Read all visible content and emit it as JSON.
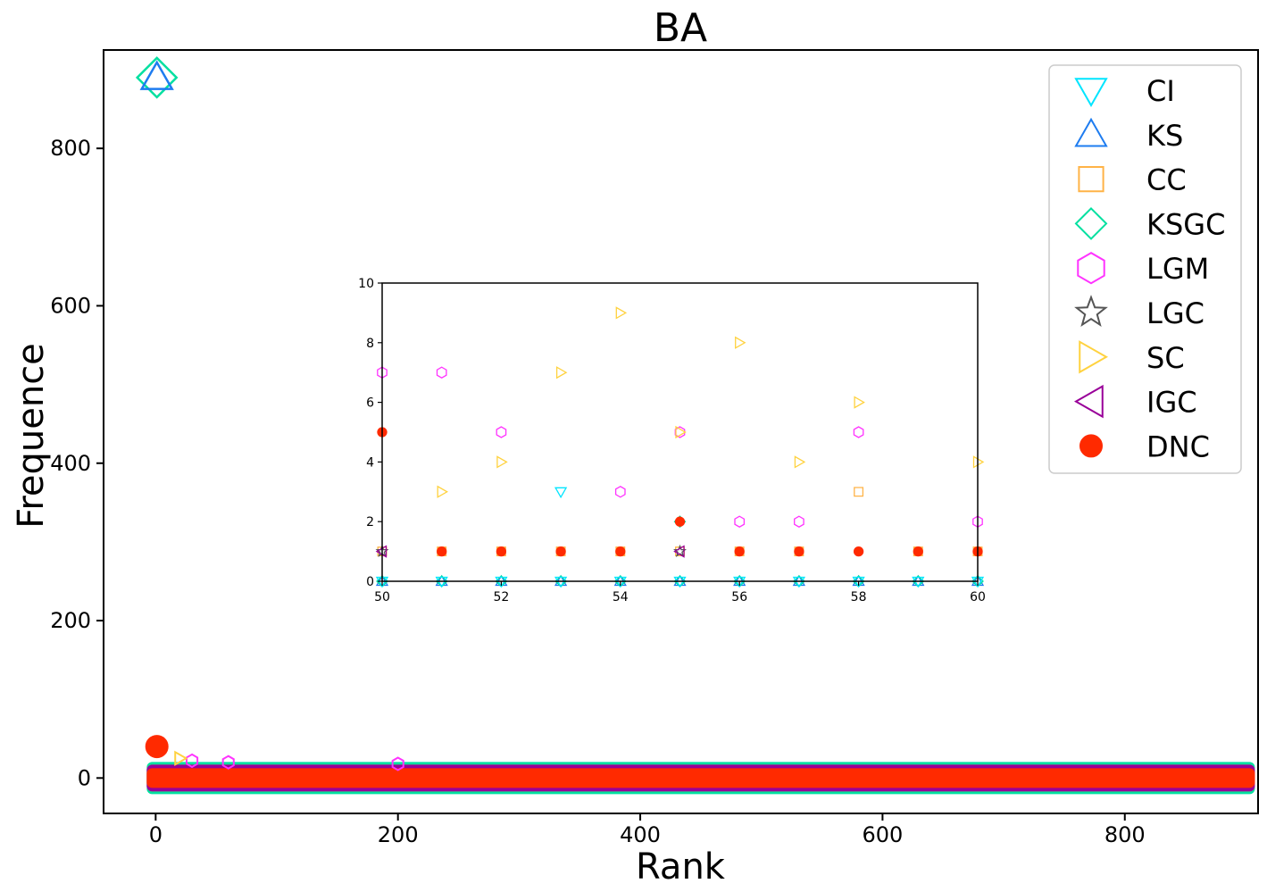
{
  "chart_data": {
    "type": "scatter",
    "title": "BA",
    "xlabel": "Rank",
    "ylabel": "Frequence",
    "xlim": [
      -43,
      910
    ],
    "ylim": [
      -45,
      925
    ],
    "xticks": [
      0,
      200,
      400,
      600,
      800
    ],
    "yticks": [
      0,
      200,
      400,
      600,
      800
    ],
    "legend_position": "top-right",
    "grid": false,
    "rank_max": 900,
    "series": [
      {
        "name": "CI",
        "marker": "triangle-down",
        "color": "#00e5ff",
        "filled": false
      },
      {
        "name": "KS",
        "marker": "triangle-up",
        "color": "#1e7cf0",
        "filled": false
      },
      {
        "name": "CC",
        "marker": "square",
        "color": "#ffb347",
        "filled": false
      },
      {
        "name": "KSGC",
        "marker": "diamond",
        "color": "#00e0a0",
        "filled": false
      },
      {
        "name": "LGM",
        "marker": "hexagon",
        "color": "#ff33ff",
        "filled": false
      },
      {
        "name": "LGC",
        "marker": "star",
        "color": "#555555",
        "filled": false
      },
      {
        "name": "SC",
        "marker": "triangle-right",
        "color": "#ffd23f",
        "filled": false
      },
      {
        "name": "IGC",
        "marker": "triangle-left",
        "color": "#990099",
        "filled": false
      },
      {
        "name": "DNC",
        "marker": "circle",
        "color": "#ff2a00",
        "filled": true
      }
    ],
    "main_points": [
      {
        "series": "KSGC",
        "x": 1,
        "y": 890
      },
      {
        "series": "KS",
        "x": 1,
        "y": 890
      },
      {
        "series": "DNC",
        "x": 1,
        "y": 40
      },
      {
        "series": "LGM",
        "x": 30,
        "y": 22
      },
      {
        "series": "LGM",
        "x": 60,
        "y": 20
      },
      {
        "series": "LGM",
        "x": 200,
        "y": 18
      },
      {
        "series": "SC",
        "x": 20,
        "y": 25
      }
    ],
    "inset": {
      "xlim": [
        50,
        60
      ],
      "ylim": [
        0,
        10
      ],
      "xticks": [
        50,
        52,
        54,
        56,
        58,
        60
      ],
      "yticks": [
        0,
        2,
        4,
        6,
        8,
        10
      ],
      "points": {
        "SC": [
          [
            51,
            3
          ],
          [
            52,
            4
          ],
          [
            53,
            7
          ],
          [
            54,
            9
          ],
          [
            55,
            5
          ],
          [
            56,
            8
          ],
          [
            57,
            4
          ],
          [
            58,
            6
          ],
          [
            60,
            4
          ]
        ],
        "LGM": [
          [
            50,
            7
          ],
          [
            51,
            7
          ],
          [
            52,
            5
          ],
          [
            54,
            3
          ],
          [
            55,
            5
          ],
          [
            56,
            2
          ],
          [
            57,
            2
          ],
          [
            58,
            5
          ],
          [
            60,
            2
          ]
        ],
        "DNC": [
          [
            50,
            5
          ],
          [
            51,
            1
          ],
          [
            52,
            1
          ],
          [
            53,
            1
          ],
          [
            54,
            1
          ],
          [
            55,
            2
          ],
          [
            56,
            1
          ],
          [
            57,
            1
          ],
          [
            58,
            1
          ],
          [
            59,
            1
          ],
          [
            60,
            1
          ]
        ],
        "CI": [
          [
            53,
            3
          ],
          [
            50,
            0
          ],
          [
            51,
            0
          ],
          [
            52,
            0
          ],
          [
            53,
            0
          ],
          [
            54,
            0
          ],
          [
            55,
            0
          ],
          [
            56,
            0
          ],
          [
            57,
            0
          ],
          [
            58,
            0
          ],
          [
            59,
            0
          ],
          [
            60,
            0
          ]
        ],
        "CC": [
          [
            50,
            1
          ],
          [
            51,
            1
          ],
          [
            52,
            1
          ],
          [
            53,
            1
          ],
          [
            54,
            1
          ],
          [
            55,
            1
          ],
          [
            56,
            1
          ],
          [
            57,
            1
          ],
          [
            58,
            3
          ],
          [
            59,
            1
          ],
          [
            60,
            1
          ]
        ],
        "KSGC": [
          [
            55,
            2
          ],
          [
            50,
            0
          ],
          [
            51,
            0
          ],
          [
            52,
            0
          ],
          [
            53,
            0
          ],
          [
            54,
            0
          ],
          [
            55,
            0
          ],
          [
            56,
            0
          ],
          [
            57,
            0
          ],
          [
            58,
            0
          ],
          [
            59,
            0
          ],
          [
            60,
            0
          ]
        ],
        "KS": [
          [
            50,
            0
          ],
          [
            51,
            0
          ],
          [
            52,
            0
          ],
          [
            53,
            0
          ],
          [
            54,
            0
          ],
          [
            55,
            0
          ],
          [
            56,
            0
          ],
          [
            57,
            0
          ],
          [
            58,
            0
          ],
          [
            59,
            0
          ],
          [
            60,
            0
          ]
        ],
        "IGC": [
          [
            50,
            1
          ],
          [
            55,
            1
          ]
        ],
        "LGC": [
          [
            50,
            1
          ],
          [
            55,
            1
          ]
        ]
      }
    }
  }
}
